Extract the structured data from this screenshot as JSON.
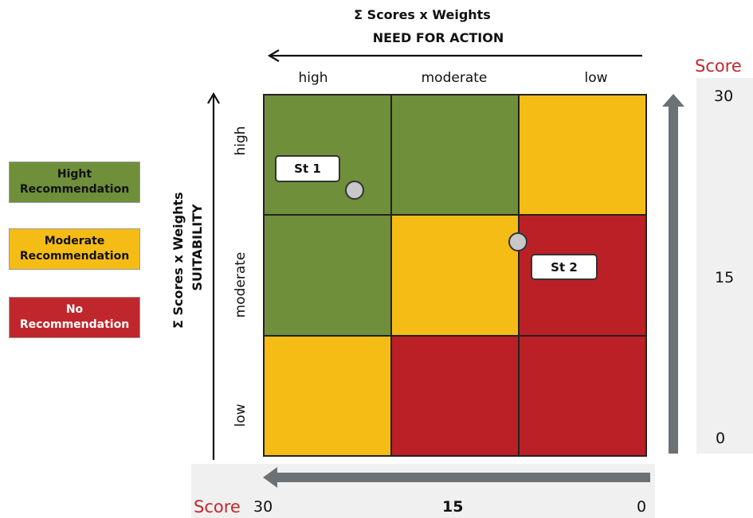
{
  "top_axis": {
    "title": "Σ Scores x Weights",
    "subtitle": "NEED FOR ACTION",
    "columns": [
      "high",
      "moderate",
      "low"
    ]
  },
  "left_axis": {
    "title": "Σ Scores x Weights",
    "subtitle": "SUITABILITY",
    "rows": [
      "high",
      "moderate",
      "low"
    ]
  },
  "legend": [
    {
      "label": "Hight Recommendation",
      "color": "#6f8f3a"
    },
    {
      "label": "Moderate Recommendation",
      "color": "#f6bc16"
    },
    {
      "label": "No Recommendation",
      "color": "#c0272d"
    }
  ],
  "matrix": {
    "cells": [
      [
        "green",
        "green",
        "yellow"
      ],
      [
        "green",
        "yellow",
        "red"
      ],
      [
        "yellow",
        "red",
        "red"
      ]
    ]
  },
  "points": [
    {
      "label": "St 1"
    },
    {
      "label": "St 2"
    }
  ],
  "right_scale": {
    "word": "Score",
    "ticks": [
      "30",
      "15",
      "0"
    ]
  },
  "bottom_scale": {
    "word": "Score",
    "ticks": [
      "30",
      "15",
      "0"
    ]
  },
  "colors": {
    "green": "#6f8f3a",
    "yellow": "#f6bc16",
    "red": "#bb2027",
    "arrow": "#6b7175"
  }
}
